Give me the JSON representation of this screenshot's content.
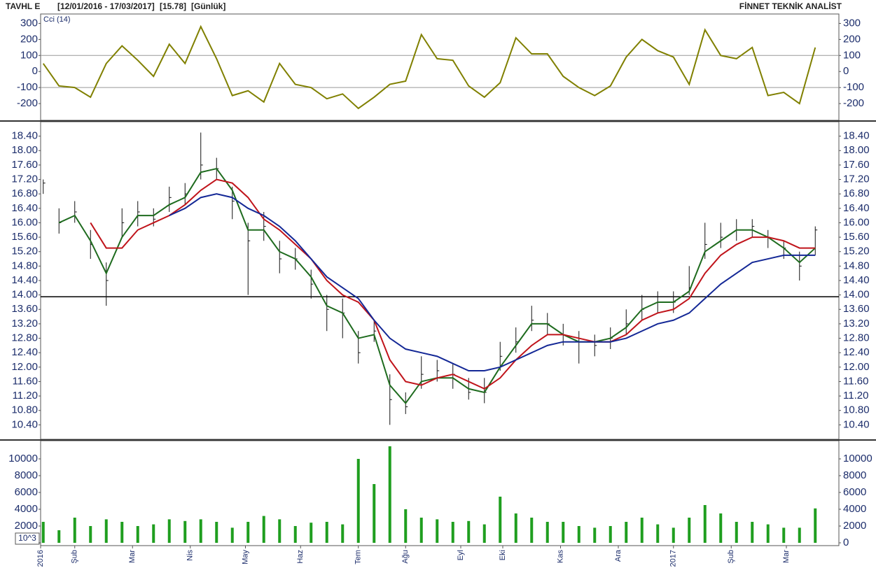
{
  "header": {
    "symbol": "TAVHL E",
    "range": "[12/01/2016 - 17/03/2017]",
    "last": "[15.78]",
    "period": "[Günlük]",
    "brand": "FİNNET TEKNİK ANALİST"
  },
  "chart_data": [
    {
      "type": "line",
      "title": "Cci (14)",
      "series": [
        {
          "color": "#808000",
          "values": [
            50,
            -90,
            -100,
            -160,
            50,
            160,
            70,
            -30,
            170,
            50,
            280,
            80,
            -150,
            -120,
            -190,
            50,
            -80,
            -100,
            -170,
            -140,
            -230,
            -160,
            -80,
            -60,
            230,
            80,
            70,
            -90,
            -160,
            -70,
            210,
            110,
            110,
            -30,
            -100,
            -150,
            -90,
            90,
            200,
            130,
            90,
            -80,
            260,
            100,
            80,
            150,
            -150,
            -130,
            -200,
            150
          ]
        }
      ],
      "ylim": [
        -300,
        350
      ],
      "yticks": [
        -200,
        -100,
        0,
        100,
        200,
        300
      ],
      "reference_lines": [
        100,
        -100
      ]
    },
    {
      "type": "ohlc",
      "high": [
        17.2,
        16.4,
        16.6,
        15.8,
        14.9,
        16.4,
        16.6,
        16.4,
        17.0,
        17.1,
        18.5,
        17.8,
        17.0,
        16.0,
        16.3,
        15.5,
        15.3,
        14.7,
        14.0,
        13.9,
        13.0,
        13.3,
        11.8,
        11.3,
        12.3,
        12.2,
        12.1,
        11.7,
        11.7,
        12.7,
        13.1,
        13.7,
        13.5,
        13.2,
        13.0,
        12.9,
        13.1,
        13.6,
        14.0,
        14.1,
        14.1,
        14.8,
        16.0,
        16.0,
        16.1,
        16.1,
        15.8,
        15.5,
        15.2,
        15.9
      ],
      "low": [
        16.8,
        15.7,
        16.0,
        15.0,
        13.7,
        15.6,
        15.9,
        15.9,
        16.3,
        16.5,
        17.2,
        17.2,
        16.1,
        14.0,
        15.5,
        14.6,
        14.7,
        13.9,
        13.0,
        12.8,
        12.1,
        12.7,
        10.4,
        10.7,
        11.4,
        11.6,
        11.4,
        11.1,
        11.0,
        11.9,
        12.4,
        13.0,
        12.9,
        12.6,
        12.1,
        12.3,
        12.5,
        12.9,
        13.3,
        13.5,
        13.5,
        14.0,
        15.0,
        15.3,
        15.5,
        15.6,
        15.3,
        15.0,
        14.4,
        15.1
      ],
      "close": [
        17.1,
        16.0,
        16.3,
        15.4,
        14.4,
        16.0,
        16.3,
        16.1,
        16.7,
        16.8,
        17.6,
        17.5,
        16.6,
        15.5,
        15.9,
        15.0,
        15.0,
        14.3,
        13.6,
        13.5,
        12.4,
        13.0,
        11.1,
        10.9,
        11.8,
        11.9,
        11.8,
        11.3,
        11.3,
        12.3,
        12.7,
        13.3,
        13.2,
        12.9,
        12.7,
        12.6,
        12.8,
        13.2,
        13.6,
        13.8,
        13.8,
        14.2,
        15.4,
        15.6,
        15.8,
        15.9,
        15.6,
        15.3,
        14.8,
        15.8
      ],
      "series": [
        {
          "color": "#1e6b1e",
          "values": [
            null,
            16.0,
            16.2,
            15.5,
            14.6,
            15.6,
            16.2,
            16.2,
            16.5,
            16.7,
            17.4,
            17.5,
            16.9,
            15.8,
            15.8,
            15.2,
            15.0,
            14.5,
            13.7,
            13.5,
            12.8,
            12.9,
            11.5,
            11.0,
            11.6,
            11.7,
            11.7,
            11.4,
            11.3,
            12.0,
            12.6,
            13.2,
            13.2,
            12.9,
            12.7,
            12.7,
            12.8,
            13.1,
            13.6,
            13.8,
            13.8,
            14.1,
            15.2,
            15.5,
            15.8,
            15.8,
            15.6,
            15.3,
            14.9,
            15.3
          ]
        },
        {
          "color": "#c0141b",
          "values": [
            null,
            null,
            null,
            16.0,
            15.3,
            15.3,
            15.8,
            16.0,
            16.2,
            16.5,
            16.9,
            17.2,
            17.1,
            16.7,
            16.1,
            15.8,
            15.4,
            15.0,
            14.4,
            14.0,
            13.8,
            13.3,
            12.2,
            11.6,
            11.5,
            11.7,
            11.8,
            11.6,
            11.4,
            11.7,
            12.2,
            12.6,
            12.9,
            12.9,
            12.8,
            12.7,
            12.7,
            12.9,
            13.3,
            13.5,
            13.6,
            13.9,
            14.6,
            15.1,
            15.4,
            15.6,
            15.6,
            15.5,
            15.3,
            15.3
          ]
        },
        {
          "color": "#142896",
          "values": [
            null,
            null,
            null,
            null,
            null,
            null,
            null,
            null,
            16.2,
            16.4,
            16.7,
            16.8,
            16.7,
            16.4,
            16.2,
            15.9,
            15.5,
            15.0,
            14.5,
            14.2,
            13.9,
            13.3,
            12.8,
            12.5,
            12.4,
            12.3,
            12.1,
            11.9,
            11.9,
            12.0,
            12.2,
            12.4,
            12.6,
            12.7,
            12.7,
            12.7,
            12.7,
            12.8,
            13.0,
            13.2,
            13.3,
            13.5,
            13.9,
            14.3,
            14.6,
            14.9,
            15.0,
            15.1,
            15.1,
            15.1
          ]
        }
      ],
      "ylim": [
        10.0,
        18.8
      ],
      "yticks": [
        {
          "value": 10.4,
          "label": "10.40"
        },
        {
          "value": 10.8,
          "label": "10.80"
        },
        {
          "value": 11.2,
          "label": "11.20"
        },
        {
          "value": 11.6,
          "label": "11.60"
        },
        {
          "value": 12.0,
          "label": "12.00"
        },
        {
          "value": 12.4,
          "label": "12.40"
        },
        {
          "value": 12.8,
          "label": "12.80"
        },
        {
          "value": 13.2,
          "label": "13.20"
        },
        {
          "value": 13.6,
          "label": "13.60"
        },
        {
          "value": 14.0,
          "label": "14.00"
        },
        {
          "value": 14.4,
          "label": "14.40"
        },
        {
          "value": 14.8,
          "label": "14.80"
        },
        {
          "value": 15.2,
          "label": "15.20"
        },
        {
          "value": 15.6,
          "label": "15.60"
        },
        {
          "value": 16.0,
          "label": "16.00"
        },
        {
          "value": 16.4,
          "label": "16.40"
        },
        {
          "value": 16.8,
          "label": "16.80"
        },
        {
          "value": 17.2,
          "label": "17.20"
        },
        {
          "value": 17.6,
          "label": "17.60"
        },
        {
          "value": 18.0,
          "label": "18.00"
        },
        {
          "value": 18.4,
          "label": "18.40"
        }
      ],
      "reference_lines": [
        13.95
      ]
    },
    {
      "type": "bar",
      "color": "#1f9e1f",
      "unit_label": "10^3",
      "values": [
        2500,
        1500,
        3000,
        2000,
        2800,
        2500,
        2000,
        2200,
        2800,
        2600,
        2800,
        2500,
        1800,
        2500,
        3200,
        2800,
        2000,
        2400,
        2500,
        2200,
        10000,
        7000,
        11500,
        4000,
        3000,
        2800,
        2500,
        2600,
        2200,
        5500,
        3500,
        3000,
        2500,
        2500,
        2000,
        1800,
        2000,
        2500,
        3000,
        2200,
        1800,
        3000,
        4500,
        3500,
        2500,
        2500,
        2200,
        1800,
        1800,
        4100
      ],
      "ylim": [
        0,
        12000
      ],
      "yticks": [
        0,
        2000,
        4000,
        6000,
        8000,
        10000
      ],
      "x": [
        1,
        7,
        13,
        19,
        25,
        31,
        37,
        43,
        49,
        55,
        61,
        67,
        73,
        79,
        85,
        91,
        97,
        103,
        109,
        115,
        121,
        127,
        133,
        139,
        145,
        151,
        157,
        163,
        169,
        175,
        181,
        187,
        193,
        199,
        205,
        211,
        217,
        223,
        229,
        235,
        241,
        247,
        253,
        259,
        265,
        271,
        277,
        283,
        289,
        295
      ],
      "xlim": [
        0,
        304
      ],
      "xticks": [
        {
          "value": 0,
          "label": "2016"
        },
        {
          "value": 13,
          "label": "Şub"
        },
        {
          "value": 35,
          "label": "Mar"
        },
        {
          "value": 57,
          "label": "Nis"
        },
        {
          "value": 78,
          "label": "May"
        },
        {
          "value": 99,
          "label": "Haz"
        },
        {
          "value": 121,
          "label": "Tem"
        },
        {
          "value": 139,
          "label": "Ağu"
        },
        {
          "value": 160,
          "label": "Eyl"
        },
        {
          "value": 176,
          "label": "Eki"
        },
        {
          "value": 198,
          "label": "Kas"
        },
        {
          "value": 220,
          "label": "Ara"
        },
        {
          "value": 241,
          "label": "2017"
        },
        {
          "value": 263,
          "label": "Şub"
        },
        {
          "value": 284,
          "label": "Mar"
        }
      ]
    }
  ]
}
